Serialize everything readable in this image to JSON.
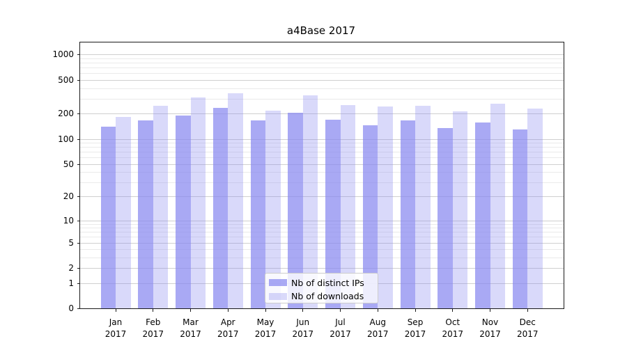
{
  "chart_data": {
    "type": "bar",
    "title": "a4Base 2017",
    "x": {
      "categories": [
        "Jan",
        "Feb",
        "Mar",
        "Apr",
        "May",
        "Jun",
        "Jul",
        "Aug",
        "Sep",
        "Oct",
        "Nov",
        "Dec"
      ],
      "year": "2017"
    },
    "yscale": "log1p",
    "ylim": [
      0,
      1420
    ],
    "yticks": [
      1000,
      500,
      200,
      100,
      50,
      20,
      10,
      5,
      2,
      1,
      0
    ],
    "minor_yticks": [
      3,
      4,
      6,
      7,
      8,
      9,
      30,
      40,
      60,
      70,
      80,
      90,
      300,
      400,
      600,
      700,
      800,
      900
    ],
    "grid": true,
    "legend": {
      "position": "lower-center"
    },
    "series": [
      {
        "name": "Nb of distinct IPs",
        "color": "rgba(136,136,240,0.72)",
        "values": [
          140,
          168,
          193,
          238,
          168,
          208,
          170,
          148,
          168,
          135,
          158,
          132
        ]
      },
      {
        "name": "Nb of downloads",
        "color": "rgba(136,136,240,0.32)",
        "values": [
          185,
          250,
          315,
          355,
          220,
          330,
          256,
          244,
          252,
          215,
          265,
          232
        ]
      }
    ]
  },
  "colors": {
    "background": "#ffffff",
    "major_grid": "#cfcfcf",
    "minor_grid": "#eaeaea",
    "spine": "#1a1a1a",
    "text": "#000000"
  }
}
